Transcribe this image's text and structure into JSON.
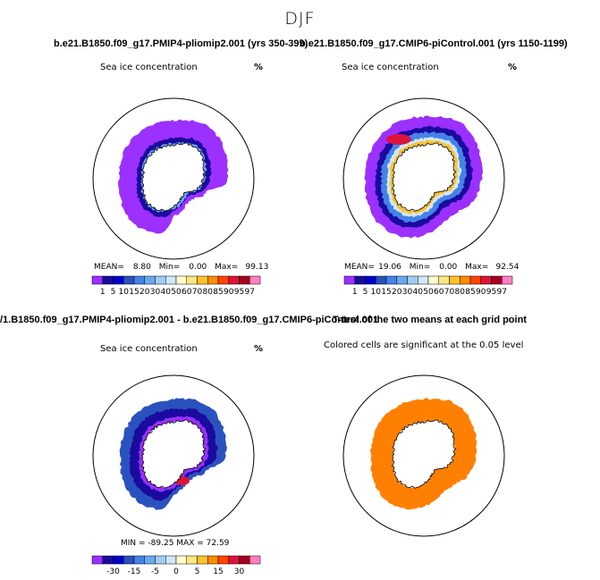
{
  "season": "DJF",
  "titles": {
    "top_left": "b.e21.B1850.f09_g17.PMIP4-pliomip2.001 (yrs 350-399)",
    "top_right": "b.e21.B1850.f09_g17.CMIP6-piControl.001 (yrs 1150-1199)",
    "bottom_left": "/1.B1850.f09_g17.PMIP4-pliomip2.001 - b.e21.B1850.f09_g17.CMIP6-piControl.001",
    "bottom_right": "T-test of the two means at each grid point"
  },
  "panels": {
    "top_left": {
      "label": "Sea ice concentration",
      "unit": "%",
      "mean_label": "MEAN=",
      "mean": "8.80",
      "min_label": "Min=",
      "min": "0.00",
      "max_label": "Max=",
      "max": "99.13"
    },
    "top_right": {
      "label": "Sea ice concentration",
      "unit": "%",
      "mean_label": "MEAN=",
      "mean": "19.06",
      "min_label": "Min=",
      "min": "0.00",
      "max_label": "Max=",
      "max": "92.54"
    },
    "bottom_left": {
      "label": "Sea ice concentration",
      "unit": "%",
      "stats": "MIN = -89.25  MAX =  72.59"
    },
    "bottom_right": {
      "label": "Colored cells are significant at the 0.05 level"
    }
  },
  "chart_data": [
    {
      "type": "heatmap",
      "title": "b.e21.B1850.f09_g17.PMIP4-pliomip2.001 (yrs 350-399)",
      "variable": "Sea ice concentration",
      "unit": "%",
      "projection": "south polar stereographic",
      "mean": 8.8,
      "min": 0.0,
      "max": 99.13,
      "colorbar_levels": [
        1,
        5,
        10,
        15,
        20,
        30,
        40,
        50,
        60,
        70,
        80,
        85,
        90,
        95,
        97
      ],
      "colorbar_tick_labels": [
        "1",
        "5",
        "10",
        "15",
        "20",
        "30",
        "40",
        "50",
        "60",
        "70",
        "80",
        "85",
        "90",
        "95",
        "97"
      ],
      "colors": [
        "#9b30ff",
        "#1a0a9e",
        "#0000cd",
        "#2a52be",
        "#4682e6",
        "#6aa8f0",
        "#a0cdf5",
        "#d0e8fa",
        "#ffffcc",
        "#ffe680",
        "#ffc12e",
        "#ff8c00",
        "#ff4500",
        "#dc143c",
        "#a50021",
        "#ff80c0"
      ]
    },
    {
      "type": "heatmap",
      "title": "b.e21.B1850.f09_g17.CMIP6-piControl.001 (yrs 1150-1199)",
      "variable": "Sea ice concentration",
      "unit": "%",
      "projection": "south polar stereographic",
      "mean": 19.06,
      "min": 0.0,
      "max": 92.54,
      "colorbar_levels": [
        1,
        5,
        10,
        15,
        20,
        30,
        40,
        50,
        60,
        70,
        80,
        85,
        90,
        95,
        97
      ],
      "colorbar_tick_labels": [
        "1",
        "5",
        "10",
        "15",
        "20",
        "30",
        "40",
        "50",
        "60",
        "70",
        "80",
        "85",
        "90",
        "95",
        "97"
      ],
      "colors": [
        "#9b30ff",
        "#1a0a9e",
        "#0000cd",
        "#2a52be",
        "#4682e6",
        "#6aa8f0",
        "#a0cdf5",
        "#d0e8fa",
        "#ffffcc",
        "#ffe680",
        "#ffc12e",
        "#ff8c00",
        "#ff4500",
        "#dc143c",
        "#a50021",
        "#ff80c0"
      ]
    },
    {
      "type": "heatmap",
      "title": "/1.B1850.f09_g17.PMIP4-pliomip2.001 - b.e21.B1850.f09_g17.CMIP6-piControl.001",
      "variable": "Sea ice concentration",
      "unit": "%",
      "projection": "south polar stereographic",
      "min": -89.25,
      "max": 72.59,
      "colorbar_tick_labels": [
        "-30",
        "-15",
        "-5",
        "0",
        "5",
        "15",
        "30"
      ],
      "colors": [
        "#9b30ff",
        "#1a0a9e",
        "#0000cd",
        "#2a52be",
        "#4682e6",
        "#6aa8f0",
        "#a0cdf5",
        "#d0e8fa",
        "#ffffcc",
        "#ffe680",
        "#ffc12e",
        "#ff8c00",
        "#ff4500",
        "#dc143c",
        "#a50021",
        "#ff80c0"
      ]
    },
    {
      "type": "heatmap",
      "title": "T-test of the two means at each grid point",
      "annotation": "Colored cells are significant at the 0.05 level",
      "projection": "south polar stereographic",
      "significance_level": 0.05,
      "significant_color": "#ff7f00"
    }
  ],
  "colors": {
    "land_outline": "#000000",
    "significant": "#ff7f00"
  }
}
